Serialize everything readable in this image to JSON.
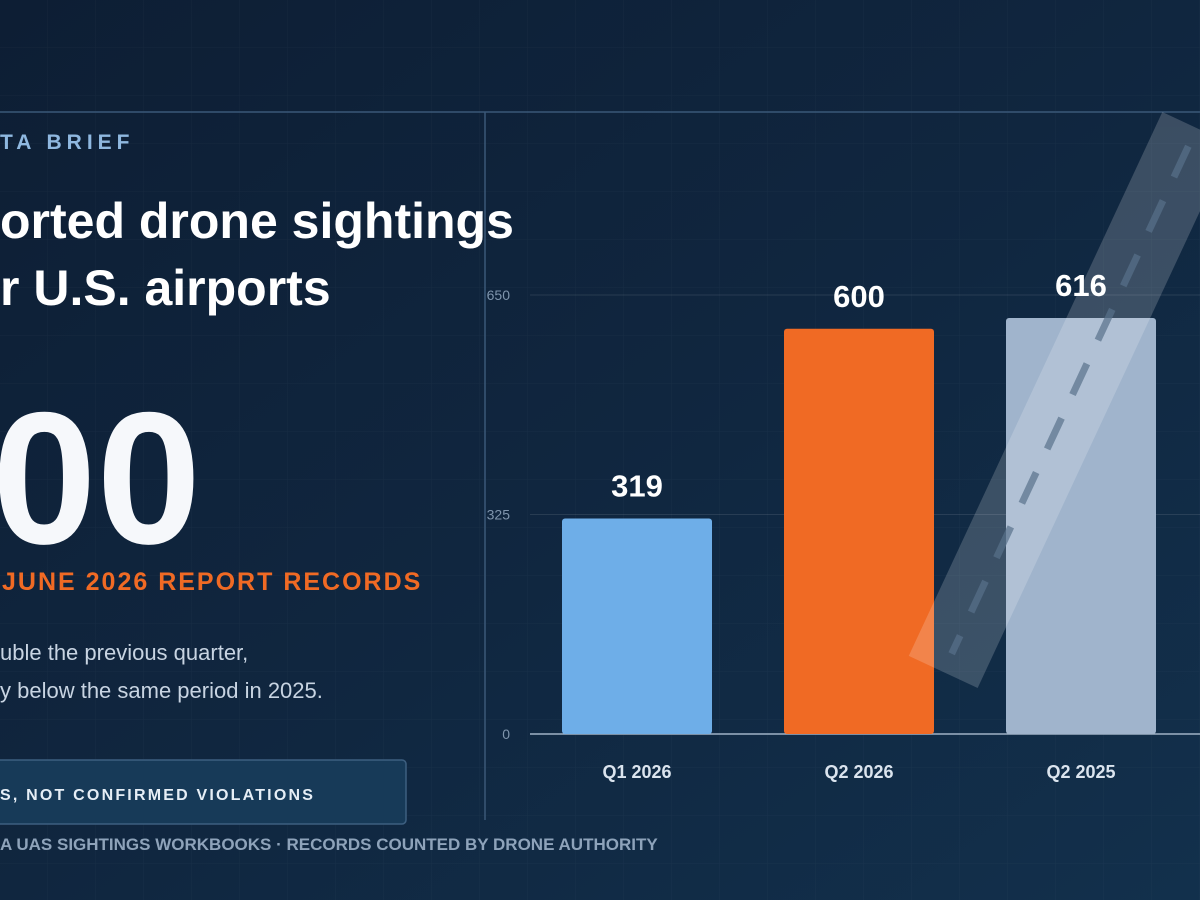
{
  "kicker": "TA BRIEF",
  "headline": [
    "orted drone sightings",
    "r U.S. airports"
  ],
  "big_number": "00",
  "big_caption": "JUNE 2026 REPORT RECORDS",
  "body": [
    "uble the previous quarter,",
    "y below the same period in 2025."
  ],
  "badge": "S, NOT CONFIRMED VIOLATIONS",
  "footer": "A UAS SIGHTINGS WORKBOOKS · RECORDS COUNTED BY DRONE AUTHORITY",
  "chart_data": {
    "type": "bar",
    "categories": [
      "Q1 2026",
      "Q2 2026",
      "Q2 2025"
    ],
    "values": [
      319,
      600,
      616
    ],
    "colors": [
      "#6eaee8",
      "#f06a24",
      "#a0b4cc"
    ],
    "ylim": [
      0,
      650
    ],
    "yticks": [
      0,
      325,
      650
    ],
    "grid": true
  }
}
